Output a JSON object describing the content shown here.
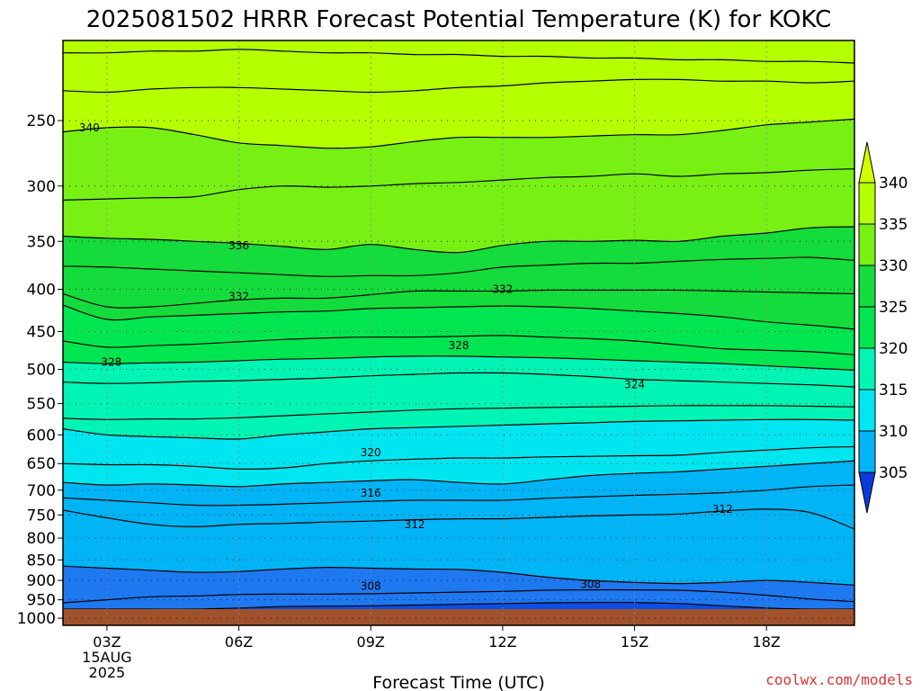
{
  "title": "2025081502 HRRR Forecast Potential Temperature (K) for KOKC",
  "credit": "coolwx.com/models",
  "colors": {
    "terrain": "#a0522d",
    "credit": "#dd3333",
    "fills": [
      "#0a4fe6",
      "#1e78f0",
      "#00b4f5",
      "#00e6f0",
      "#00f5b4",
      "#00e650",
      "#14dc3c",
      "#78f014",
      "#b4ff00"
    ]
  },
  "chart_data": {
    "type": "contour",
    "title": "2025081502 HRRR Forecast Potential Temperature (K) for KOKC",
    "xlabel": "Forecast Time (UTC)",
    "ylabel": "",
    "x_ticks": [
      {
        "lines": [
          "03Z",
          "15AUG",
          "2025"
        ]
      },
      {
        "lines": [
          "06Z"
        ]
      },
      {
        "lines": [
          "09Z"
        ]
      },
      {
        "lines": [
          "12Z"
        ]
      },
      {
        "lines": [
          "15Z"
        ]
      },
      {
        "lines": [
          "18Z"
        ]
      }
    ],
    "x_hours": [
      3,
      6,
      9,
      12,
      15,
      18
    ],
    "xlim": [
      2,
      20
    ],
    "y_ticks": [
      250,
      300,
      350,
      400,
      450,
      500,
      550,
      600,
      650,
      700,
      750,
      800,
      850,
      900,
      950,
      1000
    ],
    "ylim_hPa": [
      200,
      1020
    ],
    "surface_pressure_hPa": 975,
    "colorbar": {
      "levels": [
        305,
        310,
        315,
        320,
        325,
        330,
        335,
        340
      ],
      "labels": [
        "340",
        "335",
        "330",
        "325",
        "320",
        "315",
        "310",
        "305"
      ],
      "extend": "both",
      "unit": "K"
    },
    "contour_interval_K": 4,
    "contour_labels": [
      {
        "value": "340",
        "hour": 2.6,
        "p": 255
      },
      {
        "value": "336",
        "hour": 6.0,
        "p": 354
      },
      {
        "value": "332",
        "hour": 6.0,
        "p": 408
      },
      {
        "value": "332",
        "hour": 12.0,
        "p": 400
      },
      {
        "value": "328",
        "hour": 3.1,
        "p": 490
      },
      {
        "value": "328",
        "hour": 11.0,
        "p": 468
      },
      {
        "value": "324",
        "hour": 15.0,
        "p": 522
      },
      {
        "value": "320",
        "hour": 9.0,
        "p": 630
      },
      {
        "value": "316",
        "hour": 9.0,
        "p": 706
      },
      {
        "value": "312",
        "hour": 10.0,
        "p": 770
      },
      {
        "value": "312",
        "hour": 17.0,
        "p": 738
      },
      {
        "value": "308",
        "hour": 9.0,
        "p": 915
      },
      {
        "value": "308",
        "hour": 14.0,
        "p": 910
      }
    ],
    "isotherms": [
      {
        "theta": 344,
        "p": [
          207,
          207,
          206,
          206,
          205,
          206,
          207,
          207,
          208,
          208,
          209,
          209,
          210,
          210,
          211,
          211,
          212,
          212,
          213
        ]
      },
      {
        "theta": 342,
        "p": [
          230,
          231,
          229,
          228,
          228,
          229,
          230,
          231,
          230,
          228,
          227,
          225,
          224,
          223,
          223,
          224,
          224,
          225,
          224
        ]
      },
      {
        "theta": 340,
        "p": [
          258,
          255,
          255,
          260,
          266,
          268,
          270,
          269,
          265,
          262,
          262,
          262,
          261,
          260,
          260,
          257,
          253,
          251,
          249
        ]
      },
      {
        "theta": 338,
        "p": [
          312,
          311,
          310,
          309,
          303,
          300,
          301,
          300,
          298,
          297,
          295,
          293,
          292,
          290,
          292,
          290,
          289,
          287,
          286
        ]
      },
      {
        "theta": 336,
        "p": [
          345,
          347,
          348,
          350,
          352,
          355,
          358,
          353,
          358,
          361,
          354,
          350,
          350,
          349,
          350,
          345,
          342,
          337,
          336
        ]
      },
      {
        "theta": 334,
        "p": [
          375,
          376,
          378,
          380,
          382,
          384,
          386,
          385,
          385,
          382,
          376,
          374,
          372,
          372,
          370,
          368,
          367,
          366,
          369
        ]
      },
      {
        "theta": 332,
        "p": [
          405,
          420,
          420,
          416,
          412,
          410,
          410,
          406,
          402,
          402,
          402,
          401,
          401,
          401,
          401,
          402,
          403,
          404,
          405
        ]
      },
      {
        "theta": 330,
        "p": [
          418,
          435,
          432,
          430,
          428,
          426,
          425,
          422,
          421,
          420,
          419,
          420,
          422,
          425,
          428,
          432,
          438,
          442,
          447
        ]
      },
      {
        "theta": 328,
        "p": [
          462,
          470,
          468,
          466,
          463,
          460,
          458,
          457,
          457,
          456,
          455,
          457,
          459,
          462,
          467,
          472,
          474,
          476,
          480
        ]
      },
      {
        "theta": 326,
        "p": [
          490,
          492,
          491,
          490,
          488,
          486,
          485,
          483,
          482,
          482,
          483,
          484,
          486,
          488,
          490,
          492,
          495,
          498,
          501
        ]
      },
      {
        "theta": 324,
        "p": [
          518,
          520,
          519,
          517,
          516,
          514,
          512,
          509,
          507,
          505,
          505,
          507,
          510,
          514,
          516,
          518,
          520,
          522,
          525
        ]
      },
      {
        "theta": 322,
        "p": [
          573,
          575,
          574,
          574,
          572,
          569,
          566,
          563,
          560,
          558,
          557,
          556,
          555,
          554,
          553,
          553,
          553,
          554,
          555
        ]
      },
      {
        "theta": 320,
        "p": [
          590,
          600,
          603,
          605,
          607,
          600,
          595,
          590,
          588,
          586,
          584,
          582,
          580,
          578,
          577,
          576,
          575,
          575,
          576
        ]
      },
      {
        "theta": 318,
        "p": [
          650,
          652,
          652,
          655,
          660,
          658,
          650,
          645,
          642,
          640,
          640,
          638,
          637,
          636,
          635,
          630,
          626,
          622,
          620
        ]
      },
      {
        "theta": 316,
        "p": [
          685,
          690,
          688,
          690,
          693,
          688,
          685,
          682,
          680,
          685,
          688,
          680,
          672,
          668,
          665,
          660,
          655,
          650,
          645
        ]
      },
      {
        "theta": 314,
        "p": [
          715,
          720,
          725,
          730,
          730,
          728,
          725,
          722,
          720,
          720,
          720,
          716,
          713,
          710,
          708,
          705,
          700,
          693,
          690
        ]
      },
      {
        "theta": 312,
        "p": [
          740,
          756,
          770,
          775,
          770,
          768,
          765,
          763,
          760,
          758,
          758,
          755,
          752,
          750,
          748,
          742,
          738,
          745,
          780
        ]
      },
      {
        "theta": 310,
        "p": [
          865,
          870,
          875,
          880,
          878,
          872,
          868,
          870,
          872,
          873,
          880,
          892,
          900,
          905,
          908,
          905,
          900,
          905,
          912
        ]
      },
      {
        "theta": 308,
        "p": [
          958,
          950,
          942,
          940,
          936,
          935,
          935,
          934,
          932,
          930,
          928,
          925,
          924,
          924,
          925,
          930,
          938,
          948,
          955
        ]
      },
      {
        "theta": 306,
        "p": [
          975,
          975,
          975,
          975,
          972,
          968,
          967,
          966,
          964,
          962,
          960,
          958,
          957,
          957,
          960,
          966,
          972,
          975,
          975
        ]
      }
    ]
  }
}
